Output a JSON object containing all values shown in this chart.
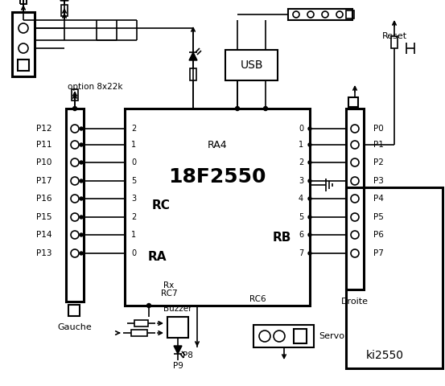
{
  "title": "ki2550",
  "bg_color": "#ffffff",
  "ic_label": "18F2550",
  "ic_sublabel": "RA4",
  "rc_label": "RC",
  "ra_label": "RA",
  "rb_label": "RB",
  "usb_label": "USB",
  "reset_label": "Reset",
  "gauche_label": "Gauche",
  "droite_label": "Droite",
  "buzzer_label": "Buzzer",
  "servo_label": "Servo",
  "option_label": "option 8x22k",
  "rc6_label": "RC6",
  "rc7_label": "RC7",
  "rx_label": "Rx",
  "left_pins": [
    "P12",
    "P11",
    "P10",
    "P17",
    "P16",
    "P15",
    "P14",
    "P13"
  ],
  "left_pin_numbers": [
    "2",
    "1",
    "0",
    "5",
    "3",
    "2",
    "1",
    "0"
  ],
  "right_pins": [
    "P0",
    "P1",
    "P2",
    "P3",
    "P4",
    "P5",
    "P6",
    "P7"
  ],
  "right_pin_numbers": [
    "0",
    "1",
    "2",
    "3",
    "4",
    "5",
    "6",
    "7"
  ],
  "p8_label": "P8",
  "p9_label": "P9"
}
